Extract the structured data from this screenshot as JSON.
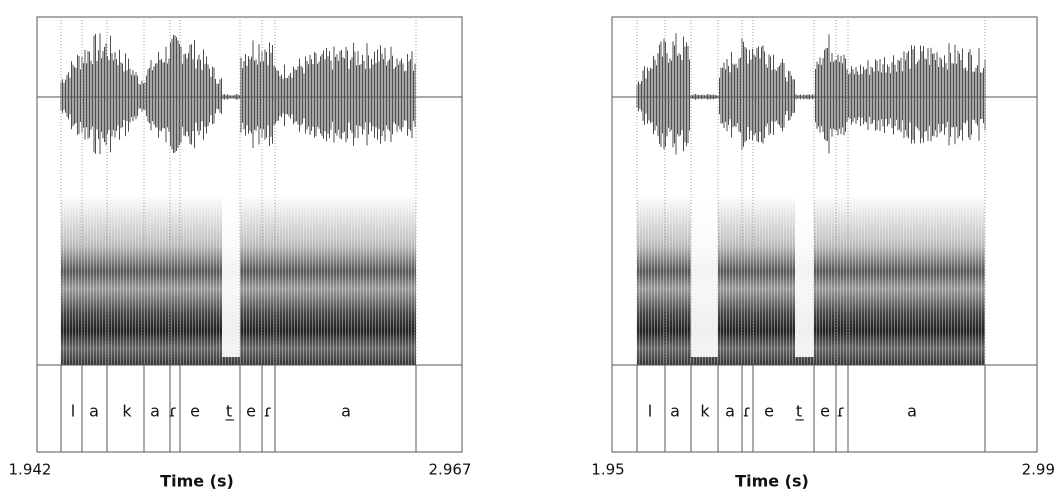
{
  "panels": [
    {
      "x_start": "1.942",
      "x_end": "2.967",
      "x_label": "Time (s)",
      "segments": [
        "l",
        "a",
        "k",
        "a",
        "ɾ",
        "e",
        "t̲",
        "e",
        "ɾ",
        "a"
      ]
    },
    {
      "x_start": "1.95",
      "x_end": "2.99",
      "x_label": "Time (s)",
      "segments": [
        "l",
        "a",
        "k",
        "a",
        "ɾ",
        "e",
        "t̲",
        "e",
        "ɾ",
        "a"
      ]
    }
  ]
}
